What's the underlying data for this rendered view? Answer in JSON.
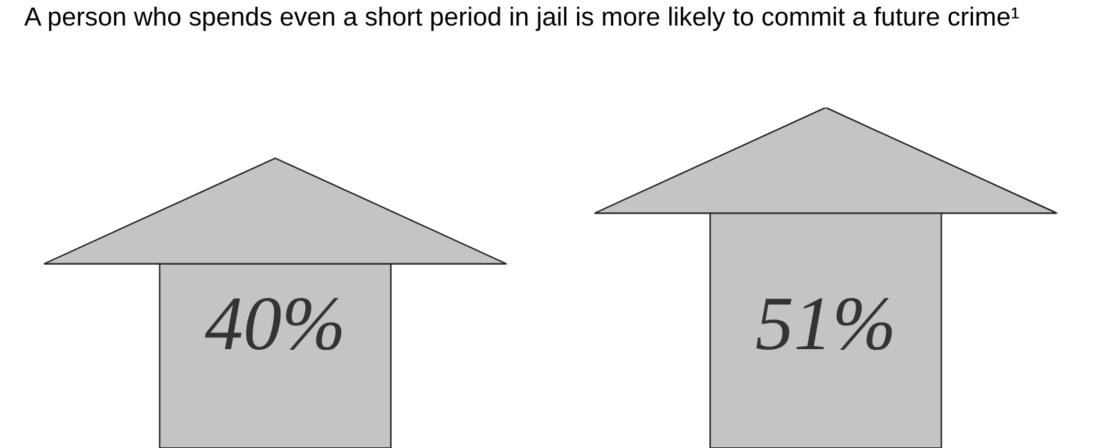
{
  "chart_data": {
    "type": "bar",
    "title": "A person who spends even a short period in jail is more likely to commit a future crime¹",
    "categories": [
      null,
      null
    ],
    "values": [
      40,
      51
    ],
    "value_labels": [
      "40%",
      "51%"
    ],
    "color": "#c4c4c4"
  }
}
